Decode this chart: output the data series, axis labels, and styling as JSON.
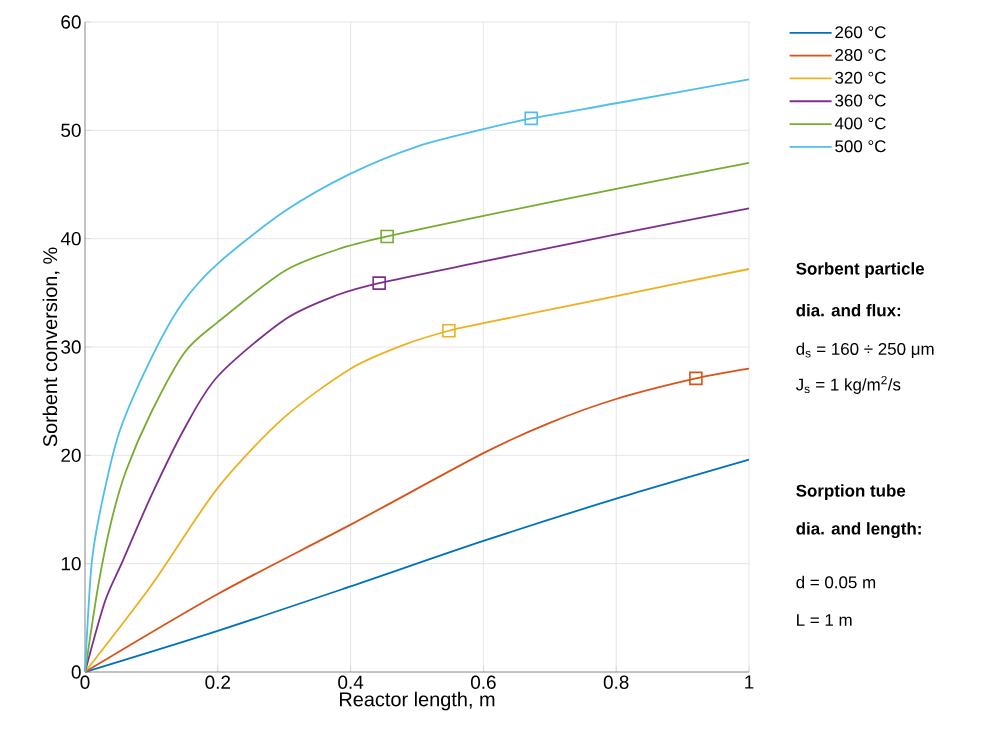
{
  "chart_data": {
    "type": "line",
    "xlabel": "Reactor length, m",
    "ylabel": "Sorbent conversion, %",
    "xlim": [
      0,
      1
    ],
    "ylim": [
      0,
      60
    ],
    "xticks": [
      0,
      0.2,
      0.4,
      0.6,
      0.8,
      1
    ],
    "yticks": [
      0,
      10,
      20,
      30,
      40,
      50,
      60
    ],
    "grid": true,
    "legend": "right",
    "line_style": "solid",
    "series": [
      {
        "name": "260 °C",
        "color": "#0072bd",
        "x": [
          0,
          0.2,
          0.4,
          0.6,
          0.8,
          1
        ],
        "values": [
          0,
          3.8,
          7.9,
          12.1,
          16.0,
          19.6
        ]
      },
      {
        "name": "280 °C",
        "color": "#d95319",
        "x": [
          0,
          0.2,
          0.4,
          0.6,
          0.7,
          0.8,
          0.92,
          1
        ],
        "values": [
          0,
          7.2,
          13.6,
          20.2,
          23.0,
          25.2,
          27.1,
          28.0
        ]
      },
      {
        "name": "320 °C",
        "color": "#edb120",
        "x": [
          0,
          0.1,
          0.2,
          0.3,
          0.4,
          0.48,
          0.548,
          0.6,
          0.8,
          1
        ],
        "values": [
          0,
          8.0,
          17.0,
          23.5,
          28.0,
          30.2,
          31.5,
          32.2,
          34.7,
          37.2
        ]
      },
      {
        "name": "360 °C",
        "color": "#7e2f8e",
        "x": [
          0,
          0.03,
          0.055,
          0.1,
          0.15,
          0.2,
          0.3,
          0.38,
          0.443,
          0.6,
          0.8,
          1
        ],
        "values": [
          0,
          6.5,
          10,
          16.3,
          22.5,
          27.3,
          32.5,
          34.8,
          35.9,
          37.9,
          40.4,
          42.8
        ]
      },
      {
        "name": "400 °C",
        "color": "#77ac30",
        "x": [
          0,
          0.02,
          0.04,
          0.062,
          0.1,
          0.15,
          0.2,
          0.3,
          0.38,
          0.455,
          0.6,
          0.8,
          1
        ],
        "values": [
          0,
          8,
          14,
          18.6,
          24,
          29.5,
          32.3,
          37,
          39,
          40.2,
          42.1,
          44.6,
          47.0
        ]
      },
      {
        "name": "500 °C",
        "color": "#4dbeee",
        "x": [
          0,
          0.01,
          0.025,
          0.052,
          0.1,
          0.146,
          0.2,
          0.3,
          0.4,
          0.5,
          0.6,
          0.672,
          0.8,
          1
        ],
        "values": [
          0,
          10,
          15.5,
          22.2,
          29,
          34,
          37.7,
          42.5,
          46,
          48.5,
          50.1,
          51.1,
          52.5,
          54.7
        ]
      },
      {
        "type": "scatter",
        "marker": "square",
        "color": "#d95319",
        "x": [
          0.92
        ],
        "values": [
          27.1
        ]
      },
      {
        "type": "scatter",
        "marker": "square",
        "color": "#edb120",
        "x": [
          0.548
        ],
        "values": [
          31.5
        ]
      },
      {
        "type": "scatter",
        "marker": "square",
        "color": "#7e2f8e",
        "x": [
          0.443
        ],
        "values": [
          35.9
        ]
      },
      {
        "type": "scatter",
        "marker": "square",
        "color": "#77ac30",
        "x": [
          0.455
        ],
        "values": [
          40.2
        ]
      },
      {
        "type": "scatter",
        "marker": "square",
        "color": "#4dbeee",
        "x": [
          0.672
        ],
        "values": [
          51.1
        ]
      }
    ],
    "annotations": [
      "**Sorbent particle**",
      "**dia. and flux:**",
      "d$_{s}$ = 160 ÷ 250 μm",
      "J$_{s}$ = 1 kg/m$^{2}$/s",
      "**Sorption tube**",
      "**dia. and length:**",
      "d = 0.05 m",
      "L = 1 m"
    ]
  }
}
